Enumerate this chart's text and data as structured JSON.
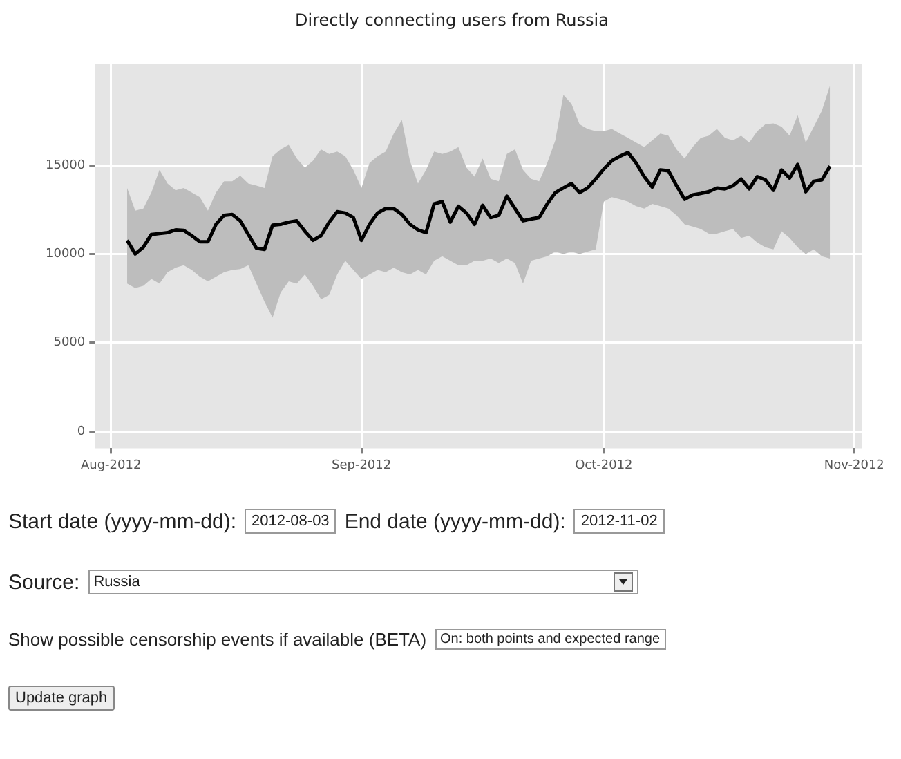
{
  "chart_data": {
    "type": "line",
    "title": "Directly connecting users from Russia",
    "x": [
      "2012-08-03",
      "2012-08-04",
      "2012-08-05",
      "2012-08-06",
      "2012-08-07",
      "2012-08-08",
      "2012-08-09",
      "2012-08-10",
      "2012-08-11",
      "2012-08-12",
      "2012-08-13",
      "2012-08-14",
      "2012-08-15",
      "2012-08-16",
      "2012-08-17",
      "2012-08-18",
      "2012-08-19",
      "2012-08-20",
      "2012-08-21",
      "2012-08-22",
      "2012-08-23",
      "2012-08-24",
      "2012-08-25",
      "2012-08-26",
      "2012-08-27",
      "2012-08-28",
      "2012-08-29",
      "2012-08-30",
      "2012-08-31",
      "2012-09-01",
      "2012-09-02",
      "2012-09-03",
      "2012-09-04",
      "2012-09-05",
      "2012-09-06",
      "2012-09-07",
      "2012-09-08",
      "2012-09-09",
      "2012-09-10",
      "2012-09-11",
      "2012-09-12",
      "2012-09-13",
      "2012-09-14",
      "2012-09-15",
      "2012-09-16",
      "2012-09-17",
      "2012-09-18",
      "2012-09-19",
      "2012-09-20",
      "2012-09-21",
      "2012-09-22",
      "2012-09-23",
      "2012-09-24",
      "2012-09-25",
      "2012-09-26",
      "2012-09-27",
      "2012-09-28",
      "2012-09-29",
      "2012-09-30",
      "2012-10-01",
      "2012-10-02",
      "2012-10-03",
      "2012-10-04",
      "2012-10-05",
      "2012-10-06",
      "2012-10-07",
      "2012-10-08",
      "2012-10-09",
      "2012-10-10",
      "2012-10-11",
      "2012-10-12",
      "2012-10-13",
      "2012-10-14",
      "2012-10-15",
      "2012-10-16",
      "2012-10-17",
      "2012-10-18",
      "2012-10-19",
      "2012-10-20",
      "2012-10-21",
      "2012-10-22",
      "2012-10-23",
      "2012-10-24",
      "2012-10-25",
      "2012-10-26",
      "2012-10-27",
      "2012-10-28",
      "2012-10-29"
    ],
    "series": [
      {
        "color": "#000000",
        "values": [
          10770,
          10000,
          10380,
          11100,
          11150,
          11200,
          11360,
          11330,
          11030,
          10690,
          10690,
          11670,
          12180,
          12230,
          11870,
          11100,
          10330,
          10260,
          11620,
          11670,
          11790,
          11870,
          11280,
          10770,
          11030,
          11790,
          12380,
          12310,
          12050,
          10770,
          11670,
          12310,
          12560,
          12560,
          12230,
          11670,
          11360,
          11200,
          12820,
          12950,
          11790,
          12690,
          12310,
          11670,
          12740,
          12050,
          12180,
          13260,
          12560,
          11870,
          11970,
          12050,
          12820,
          13460,
          13720,
          13970,
          13460,
          13720,
          14230,
          14790,
          15260,
          15510,
          15720,
          15130,
          14360,
          13770,
          14740,
          14690,
          13850,
          13080,
          13330,
          13410,
          13510,
          13720,
          13670,
          13850,
          14230,
          13670,
          14360,
          14180,
          13590,
          14740,
          14280,
          15050,
          13510,
          14100,
          14180,
          14950
        ],
        "lower": [
          8330,
          8080,
          8200,
          8590,
          8330,
          8970,
          9230,
          9360,
          9100,
          8720,
          8460,
          8720,
          8970,
          9100,
          9150,
          9360,
          8330,
          7310,
          6410,
          7820,
          8460,
          8330,
          8850,
          8200,
          7440,
          7690,
          8850,
          9620,
          9100,
          8590,
          8850,
          9100,
          8970,
          9230,
          8970,
          8850,
          9100,
          8850,
          9620,
          9870,
          9620,
          9360,
          9360,
          9620,
          9620,
          9740,
          9490,
          9740,
          9490,
          8330,
          9620,
          9740,
          9870,
          10130,
          10000,
          10130,
          10000,
          10130,
          10260,
          12950,
          13200,
          13080,
          12950,
          12690,
          12560,
          12820,
          12690,
          12560,
          12180,
          11670,
          11540,
          11410,
          11150,
          11150,
          11280,
          11410,
          10900,
          11030,
          10640,
          10380,
          10260,
          11280,
          10900,
          10380,
          10000,
          10260,
          9870,
          9740
        ],
        "upper": [
          13720,
          12440,
          12560,
          13460,
          14740,
          13970,
          13590,
          13720,
          13460,
          13200,
          12440,
          13460,
          14100,
          14100,
          14410,
          13970,
          13850,
          13720,
          15510,
          15900,
          16150,
          15380,
          14870,
          15260,
          15900,
          15640,
          15770,
          15510,
          14740,
          13720,
          15130,
          15510,
          15770,
          16790,
          17560,
          15260,
          13970,
          14740,
          15770,
          15640,
          15770,
          16030,
          14870,
          14360,
          15380,
          14230,
          14100,
          15640,
          15900,
          14740,
          14230,
          14100,
          15130,
          16410,
          18970,
          18460,
          17310,
          17050,
          16920,
          16920,
          17050,
          16790,
          16540,
          16280,
          16030,
          16410,
          16790,
          16670,
          15900,
          15380,
          16030,
          16540,
          16670,
          17050,
          16540,
          16410,
          16670,
          16280,
          16920,
          17310,
          17360,
          17180,
          16670,
          17820,
          16280,
          17180,
          18080,
          19490
        ]
      }
    ],
    "xlim": [
      "2012-07-30",
      "2012-11-02"
    ],
    "xticks": [
      {
        "value": "2012-08-01",
        "label": "Aug-2012"
      },
      {
        "value": "2012-09-01",
        "label": "Sep-2012"
      },
      {
        "value": "2012-10-01",
        "label": "Oct-2012"
      },
      {
        "value": "2012-11-01",
        "label": "Nov-2012"
      }
    ],
    "ylim": [
      -950,
      20700
    ],
    "yticks": [
      0,
      5000,
      10000,
      15000
    ],
    "grid": true,
    "legend": false,
    "marker": "none",
    "line_style": "solid",
    "annotations": [
      "Start date (yyyy-mm-dd):",
      "2012-08-03",
      "End date (yyyy-mm-dd):",
      "2012-11-02",
      "Source:",
      "Russia",
      "Show possible censorship events if available (BETA)",
      "On: both points and expected range",
      "Update graph"
    ]
  }
}
